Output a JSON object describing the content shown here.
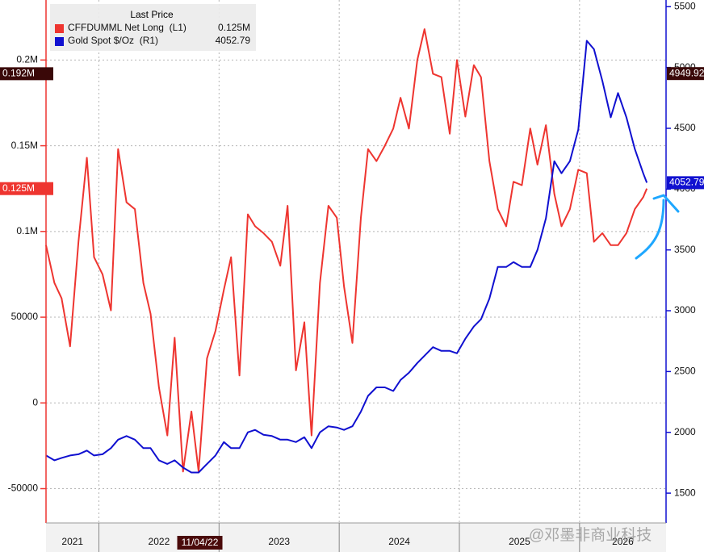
{
  "chart_data": {
    "type": "line",
    "legend": {
      "title": "Last Price",
      "corner": "top-left"
    },
    "x": [
      2021.56,
      2021.63,
      2021.69,
      2021.76,
      2021.83,
      2021.9,
      2021.96,
      2022.03,
      2022.1,
      2022.16,
      2022.23,
      2022.3,
      2022.37,
      2022.43,
      2022.5,
      2022.57,
      2022.63,
      2022.7,
      2022.77,
      2022.83,
      2022.9,
      2022.97,
      2023.04,
      2023.1,
      2023.17,
      2023.24,
      2023.3,
      2023.37,
      2023.44,
      2023.51,
      2023.57,
      2023.64,
      2023.71,
      2023.77,
      2023.84,
      2023.91,
      2023.98,
      2024.04,
      2024.11,
      2024.18,
      2024.24,
      2024.31,
      2024.38,
      2024.45,
      2024.51,
      2024.58,
      2024.65,
      2024.71,
      2024.78,
      2024.85,
      2024.92,
      2024.98,
      2025.05,
      2025.12,
      2025.18,
      2025.25,
      2025.32,
      2025.39,
      2025.45,
      2025.52,
      2025.59,
      2025.65,
      2025.72,
      2025.79,
      2025.85,
      2025.92,
      2025.99,
      2026.06,
      2026.12,
      2026.19,
      2026.26,
      2026.32,
      2026.39,
      2026.46,
      2026.53,
      2026.56
    ],
    "xlim": [
      2021.56,
      2026.72
    ],
    "xticks": [
      2021,
      2022,
      2023,
      2024,
      2025,
      2026
    ],
    "x_marker": {
      "value": 2022.84,
      "label": "11/04/22"
    },
    "ylim": [
      -70000,
      235000
    ],
    "yticks": [
      -50000,
      0,
      50000,
      {
        "value": 100000,
        "label": "0.1M"
      },
      {
        "value": 150000,
        "label": "0.15M"
      },
      {
        "value": 200000,
        "label": "0.2M"
      }
    ],
    "y2lim": [
      1255,
      5555
    ],
    "y2ticks": [
      1500,
      2000,
      2500,
      3000,
      3500,
      4000,
      4500,
      5000,
      5500
    ],
    "grid": true,
    "series": [
      {
        "name": "CFFDUMML Net Long  (L1)",
        "color": "#ee3530",
        "axis": "y",
        "last_label": "0.125M",
        "values": [
          92000,
          70000,
          61000,
          33000,
          94000,
          143000,
          85000,
          75000,
          54000,
          148000,
          117000,
          113000,
          70000,
          52000,
          9000,
          -19000,
          38000,
          -40000,
          -5000,
          -40000,
          26000,
          42000,
          66000,
          85000,
          16000,
          110000,
          103000,
          99000,
          94000,
          80000,
          115000,
          19000,
          47000,
          -19000,
          70000,
          115000,
          108000,
          68000,
          35000,
          108000,
          148000,
          141000,
          150000,
          160000,
          178000,
          160000,
          200000,
          218000,
          192000,
          190000,
          157000,
          200000,
          167000,
          197000,
          190000,
          141000,
          113000,
          103000,
          129000,
          127000,
          160000,
          139000,
          162000,
          122000,
          103000,
          113000,
          136000,
          134000,
          94000,
          99000,
          92000,
          92000,
          99000,
          113000,
          120000,
          125000
        ]
      },
      {
        "name": "Gold Spot $/Oz  (R1)",
        "color": "#1010d0",
        "axis": "y2",
        "last_label": "4052.79",
        "values": [
          1810,
          1770,
          1790,
          1810,
          1820,
          1850,
          1810,
          1820,
          1870,
          1940,
          1970,
          1940,
          1870,
          1870,
          1770,
          1740,
          1770,
          1710,
          1670,
          1670,
          1740,
          1810,
          1920,
          1870,
          1870,
          2000,
          2020,
          1980,
          1970,
          1940,
          1940,
          1920,
          1960,
          1870,
          2000,
          2050,
          2040,
          2020,
          2050,
          2170,
          2300,
          2370,
          2370,
          2340,
          2430,
          2490,
          2570,
          2630,
          2700,
          2670,
          2670,
          2650,
          2770,
          2870,
          2930,
          3100,
          3360,
          3360,
          3400,
          3360,
          3360,
          3500,
          3760,
          4230,
          4130,
          4230,
          4490,
          5220,
          5150,
          4890,
          4590,
          4790,
          4590,
          4330,
          4130,
          4052.79
        ]
      }
    ],
    "reference_lines": [
      {
        "axis": "y",
        "value": 192000,
        "label": "0.192M"
      },
      {
        "axis": "y2",
        "value": 4949.92,
        "label": "4949.92"
      }
    ]
  },
  "watermark": "@邓墨非商业科技"
}
